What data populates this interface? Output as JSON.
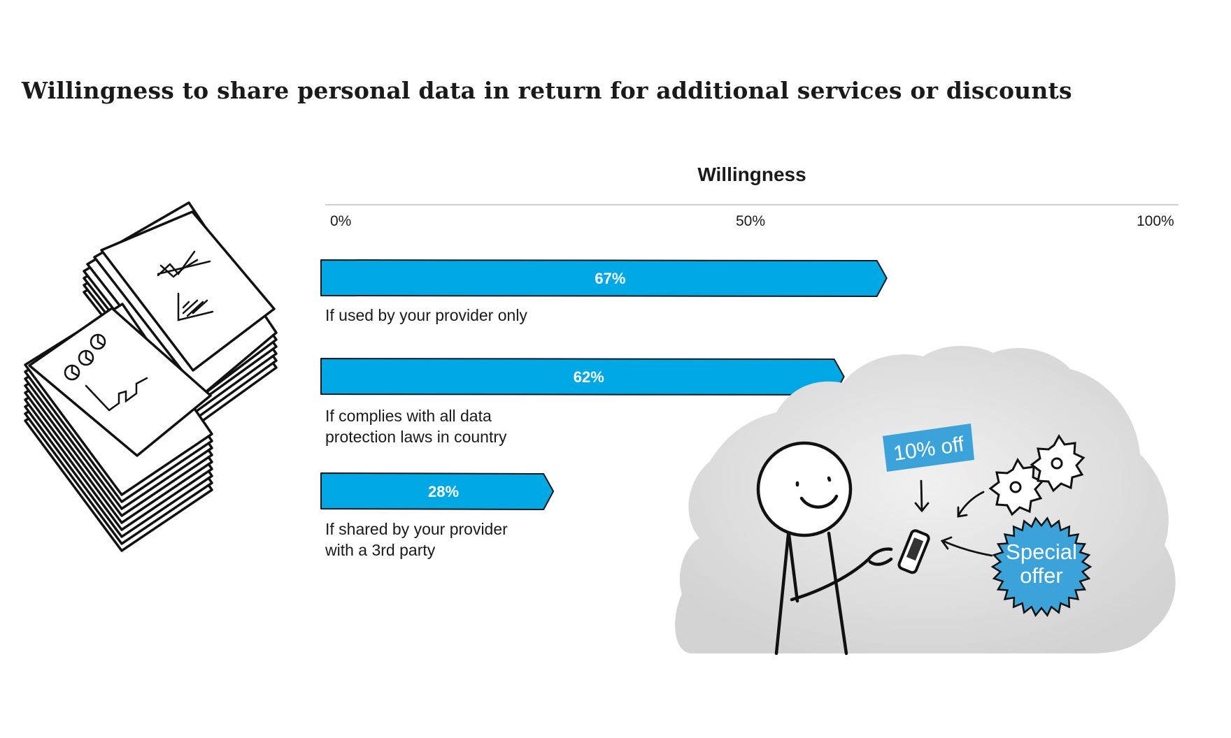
{
  "chart_data": {
    "type": "bar",
    "orientation": "horizontal",
    "title": "Willingness to share personal data in return for additional services or discounts",
    "xlabel": "Willingness",
    "ylabel": "",
    "xlim": [
      0,
      100
    ],
    "ticks": [
      "0%",
      "50%",
      "100%"
    ],
    "categories": [
      [
        "If used by your provider only"
      ],
      [
        "If complies with all data",
        "protection laws in country"
      ],
      [
        "If shared by your provider",
        "with a 3rd party"
      ]
    ],
    "values": [
      67,
      62,
      28
    ],
    "value_labels": [
      "67%",
      "62%",
      "28%"
    ],
    "bar_color": "#00a9e6",
    "grid": false
  },
  "illustration": {
    "tag_text": "10% off",
    "badge_lines": [
      "Special",
      "offer"
    ],
    "accent": "#3ba3d9"
  }
}
